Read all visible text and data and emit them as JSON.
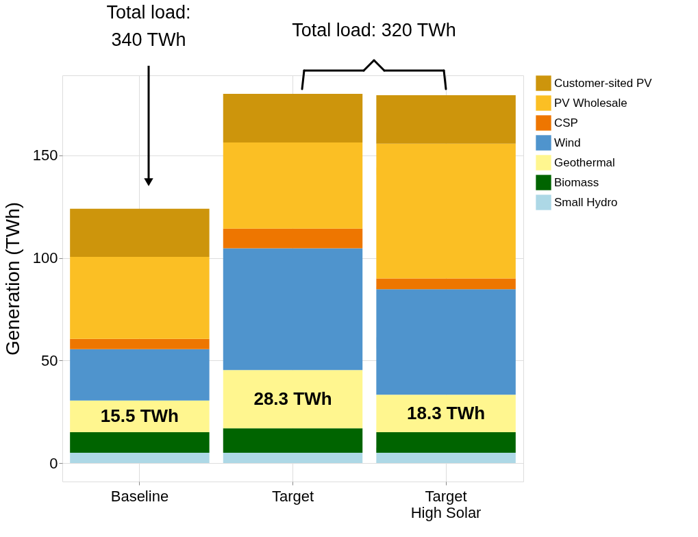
{
  "chart_data": {
    "type": "bar",
    "stacked": true,
    "ylabel": "Generation (TWh)",
    "categories": [
      "Baseline",
      "Target",
      "Target\nHigh Solar"
    ],
    "series": [
      {
        "name": "Small Hydro",
        "color": "#add8e6",
        "values": [
          5,
          5,
          5
        ]
      },
      {
        "name": "Biomass",
        "color": "#006400",
        "values": [
          10,
          12,
          10
        ]
      },
      {
        "name": "Geothermal",
        "color": "#fff68f",
        "values": [
          15.5,
          28.3,
          18.3
        ],
        "value_labels": [
          "15.5 TWh",
          "28.3 TWh",
          "18.3 TWh"
        ]
      },
      {
        "name": "Wind",
        "color": "#4f94cd",
        "values": [
          25,
          59.4,
          51.4
        ]
      },
      {
        "name": "CSP",
        "color": "#ee7600",
        "values": [
          5,
          9.6,
          5.3
        ]
      },
      {
        "name": "PV Wholesale",
        "color": "#fbbf24",
        "values": [
          40,
          42,
          65.7
        ]
      },
      {
        "name": "Customer-sited PV",
        "color": "#cd950c",
        "values": [
          23.5,
          23.7,
          23.6
        ]
      }
    ],
    "ylim": [
      -9,
      189
    ],
    "yticks": [
      0,
      50,
      100,
      150
    ],
    "grid": true,
    "legend": "right",
    "annotations": [
      "Total load:\n340 TWh",
      "Total load: 320 TWh"
    ]
  }
}
